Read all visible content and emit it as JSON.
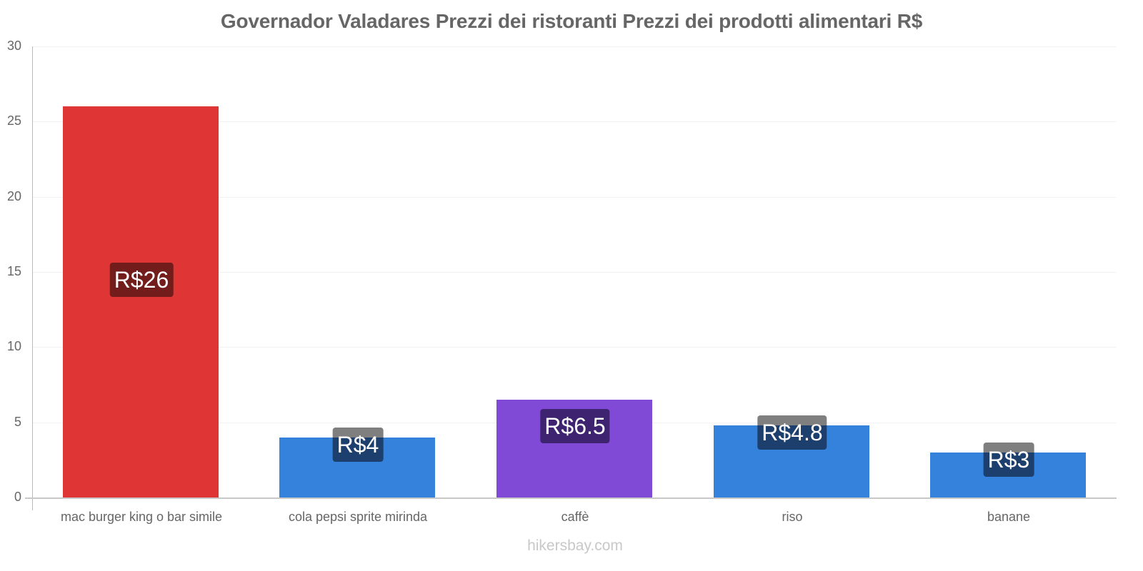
{
  "chart_data": {
    "type": "bar",
    "title": "Governador Valadares Prezzi dei ristoranti Prezzi dei prodotti alimentari R$",
    "xlabel": "",
    "ylabel": "",
    "ylim": [
      0,
      30
    ],
    "yticks": [
      "0",
      "5",
      "10",
      "15",
      "20",
      "25",
      "30"
    ],
    "grid": true,
    "legend": null,
    "categories": [
      "mac burger king o bar simile",
      "cola pepsi sprite mirinda",
      "caffè",
      "riso",
      "banane"
    ],
    "values": [
      26,
      4,
      6.5,
      4.8,
      3
    ],
    "data_labels": [
      "R$26",
      "R$4",
      "R$6.5",
      "R$4.8",
      "R$3"
    ],
    "bar_colors": [
      "#e03535",
      "#3482dc",
      "#8049d6",
      "#3482dc",
      "#3482dc"
    ],
    "label_box_colors": [
      "#731c1c",
      "#1d3f6e",
      "#3e2470",
      "#1d3f6e",
      "#1d3f6e"
    ]
  },
  "watermark": "hikersbay.com"
}
